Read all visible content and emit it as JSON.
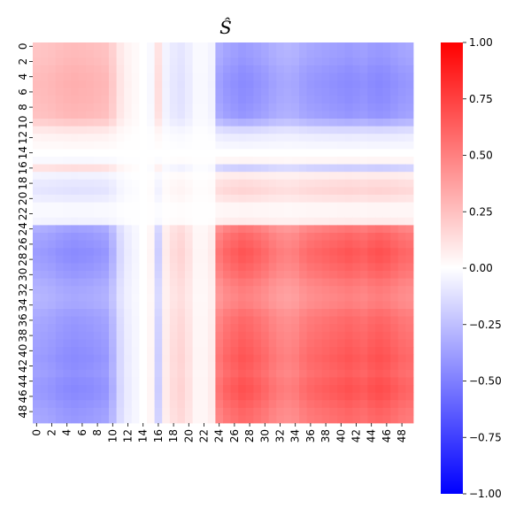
{
  "chart_data": {
    "type": "heatmap",
    "title": "Ŝ",
    "xlabel": "",
    "ylabel": "",
    "n": 50,
    "xtick_labels": [
      "0",
      "2",
      "4",
      "6",
      "8",
      "10",
      "12",
      "14",
      "16",
      "18",
      "20",
      "22",
      "24",
      "26",
      "28",
      "30",
      "32",
      "34",
      "36",
      "38",
      "40",
      "42",
      "44",
      "46",
      "48"
    ],
    "ytick_labels": [
      "0",
      "2",
      "4",
      "6",
      "8",
      "10",
      "12",
      "14",
      "16",
      "18",
      "20",
      "22",
      "24",
      "26",
      "28",
      "30",
      "32",
      "34",
      "36",
      "38",
      "40",
      "42",
      "44",
      "46",
      "48"
    ],
    "colorbar": {
      "vmin": -1.0,
      "vmax": 1.0,
      "tick_values": [
        1.0,
        0.75,
        0.5,
        0.25,
        0.0,
        -0.25,
        -0.5,
        -0.75,
        -1.0
      ],
      "tick_labels": [
        "1.00",
        "0.75",
        "0.50",
        "0.25",
        "0.00",
        "−0.25",
        "−0.50",
        "−0.75",
        "−1.00"
      ],
      "colormap": "bwr",
      "low_color": "#0000ff",
      "mid_color": "#ffffff",
      "high_color": "#ff0000"
    },
    "loading_vector": [
      0.5,
      0.51,
      0.53,
      0.56,
      0.58,
      0.59,
      0.58,
      0.57,
      0.55,
      0.53,
      0.4,
      0.2,
      0.1,
      0.05,
      0.0,
      -0.05,
      0.25,
      -0.1,
      -0.18,
      -0.22,
      -0.15,
      -0.05,
      -0.05,
      -0.1,
      -0.7,
      -0.78,
      -0.82,
      -0.86,
      -0.84,
      -0.8,
      -0.76,
      -0.7,
      -0.66,
      -0.64,
      -0.66,
      -0.72,
      -0.76,
      -0.78,
      -0.8,
      -0.82,
      -0.84,
      -0.86,
      -0.84,
      -0.82,
      -0.86,
      -0.88,
      -0.86,
      -0.82,
      -0.78,
      -0.76
    ],
    "scale": 0.9
  }
}
